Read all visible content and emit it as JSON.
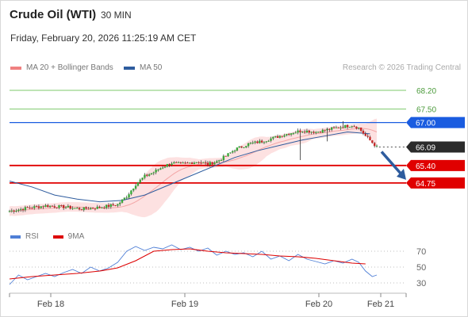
{
  "header": {
    "title": "Crude Oil (WTI)",
    "interval": "30 MIN",
    "datetime": "Friday, February 20, 2026 11:25:19 AM CET"
  },
  "legend": {
    "bollinger": {
      "label": "MA 20 + Bollinger Bands",
      "color": "#f08080"
    },
    "ma50": {
      "label": "MA 50",
      "color": "#2e5c9e"
    },
    "credit": "Research © 2026 Trading Central"
  },
  "rsi_legend": {
    "rsi": {
      "label": "RSI",
      "color": "#4f7fd6"
    },
    "ma9": {
      "label": "9MA",
      "color": "#dd0000"
    }
  },
  "chart_data": [
    {
      "type": "candlestick",
      "ylim": [
        63.3,
        68.7
      ],
      "x_labels": [
        "Feb 18",
        "Feb 19",
        "Feb 20",
        "Feb 21"
      ],
      "last_price": 66.09,
      "levels": [
        {
          "value": 68.2,
          "label": "68.20",
          "kind": "resistance-minor",
          "color": "#7ec86b"
        },
        {
          "value": 67.5,
          "label": "67.50",
          "kind": "resistance-minor",
          "color": "#7ec86b"
        },
        {
          "value": 67.0,
          "label": "67.00",
          "kind": "pivot",
          "color": "#1a5ce0"
        },
        {
          "value": 66.09,
          "label": "66.09",
          "kind": "last",
          "color": "#2b2b2b"
        },
        {
          "value": 65.4,
          "label": "65.40",
          "kind": "support",
          "color": "#e00000"
        },
        {
          "value": 64.75,
          "label": "64.75",
          "kind": "support",
          "color": "#e00000"
        }
      ],
      "close_path": [
        [
          0,
          63.7
        ],
        [
          8,
          63.82
        ],
        [
          16,
          63.9
        ],
        [
          24,
          63.86
        ],
        [
          32,
          63.78
        ],
        [
          40,
          63.84
        ],
        [
          48,
          63.95
        ],
        [
          52,
          64.25
        ],
        [
          56,
          64.7
        ],
        [
          60,
          65.0
        ],
        [
          64,
          65.15
        ],
        [
          68,
          65.35
        ],
        [
          72,
          65.5
        ],
        [
          76,
          65.45
        ],
        [
          80,
          65.5
        ],
        [
          84,
          65.55
        ],
        [
          88,
          65.45
        ],
        [
          92,
          65.55
        ],
        [
          96,
          65.75
        ],
        [
          100,
          66.0
        ],
        [
          106,
          66.2
        ],
        [
          112,
          66.3
        ],
        [
          118,
          66.45
        ],
        [
          124,
          66.6
        ],
        [
          130,
          66.7
        ],
        [
          136,
          66.65
        ],
        [
          142,
          66.75
        ],
        [
          148,
          66.85
        ],
        [
          152,
          66.9
        ],
        [
          155,
          66.8
        ],
        [
          158,
          66.5
        ],
        [
          161,
          66.25
        ],
        [
          163,
          66.09
        ]
      ],
      "forecast_target": 64.75,
      "ma50": [
        [
          0,
          64.82
        ],
        [
          10,
          64.6
        ],
        [
          20,
          64.3
        ],
        [
          30,
          64.15
        ],
        [
          40,
          64.05
        ],
        [
          50,
          64.1
        ],
        [
          60,
          64.3
        ],
        [
          70,
          64.65
        ],
        [
          80,
          65.0
        ],
        [
          90,
          65.35
        ],
        [
          100,
          65.7
        ],
        [
          110,
          65.95
        ],
        [
          120,
          66.15
        ],
        [
          130,
          66.35
        ],
        [
          140,
          66.5
        ],
        [
          150,
          66.65
        ],
        [
          160,
          66.58
        ]
      ]
    },
    {
      "type": "line",
      "name": "RSI panel",
      "ylim": [
        20,
        80
      ],
      "y_ticks": [
        70,
        50,
        30
      ],
      "series": [
        {
          "name": "RSI",
          "values": [
            [
              0,
              28
            ],
            [
              4,
              40
            ],
            [
              8,
              34
            ],
            [
              12,
              38
            ],
            [
              16,
              42
            ],
            [
              20,
              38
            ],
            [
              24,
              43
            ],
            [
              28,
              47
            ],
            [
              32,
              42
            ],
            [
              36,
              50
            ],
            [
              40,
              45
            ],
            [
              44,
              49
            ],
            [
              48,
              56
            ],
            [
              52,
              70
            ],
            [
              56,
              76
            ],
            [
              60,
              71
            ],
            [
              64,
              75
            ],
            [
              68,
              73
            ],
            [
              72,
              78
            ],
            [
              76,
              72
            ],
            [
              80,
              75
            ],
            [
              84,
              70
            ],
            [
              88,
              74
            ],
            [
              92,
              65
            ],
            [
              96,
              70
            ],
            [
              100,
              66
            ],
            [
              104,
              68
            ],
            [
              108,
              63
            ],
            [
              112,
              70
            ],
            [
              116,
              60
            ],
            [
              120,
              64
            ],
            [
              124,
              58
            ],
            [
              128,
              66
            ],
            [
              132,
              60
            ],
            [
              136,
              57
            ],
            [
              140,
              54
            ],
            [
              144,
              58
            ],
            [
              148,
              55
            ],
            [
              152,
              60
            ],
            [
              155,
              56
            ],
            [
              158,
              45
            ],
            [
              161,
              38
            ],
            [
              163,
              40
            ]
          ]
        },
        {
          "name": "9MA",
          "values": [
            [
              0,
              35
            ],
            [
              10,
              38
            ],
            [
              20,
              40
            ],
            [
              30,
              42
            ],
            [
              40,
              45
            ],
            [
              48,
              49
            ],
            [
              56,
              58
            ],
            [
              64,
              70
            ],
            [
              72,
              72
            ],
            [
              80,
              73
            ],
            [
              88,
              70
            ],
            [
              96,
              68
            ],
            [
              104,
              67
            ],
            [
              112,
              66
            ],
            [
              120,
              64
            ],
            [
              128,
              63
            ],
            [
              136,
              61
            ],
            [
              144,
              58
            ],
            [
              152,
              55
            ],
            [
              158,
              54
            ]
          ]
        }
      ]
    }
  ]
}
